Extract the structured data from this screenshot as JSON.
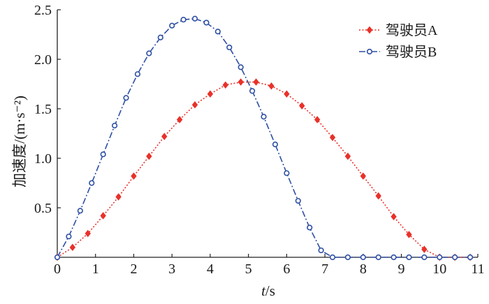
{
  "chart_data": {
    "type": "line",
    "ylabel": "加速度/(m·s⁻²)",
    "xlabel_var": "t",
    "xlabel_unit": "/s",
    "xlim": [
      0,
      11
    ],
    "ylim": [
      0,
      2.5
    ],
    "x_ticks": [
      "0",
      "1",
      "2",
      "3",
      "4",
      "5",
      "6",
      "7",
      "8",
      "9",
      "10",
      "11"
    ],
    "y_ticks": [
      "0.5",
      "1.0",
      "1.5",
      "2.0",
      "2.5"
    ],
    "grid": false,
    "legend_position": "top-right",
    "series": [
      {
        "name": "驾驶员A",
        "color": "#e8312a",
        "marker": "diamond",
        "line_style": "dotted",
        "x": [
          0,
          0.4,
          0.8,
          1.2,
          1.6,
          2.0,
          2.4,
          2.8,
          3.2,
          3.6,
          4.0,
          4.4,
          4.8,
          5.2,
          5.6,
          6.0,
          6.4,
          6.8,
          7.2,
          7.6,
          8.0,
          8.4,
          8.8,
          9.2,
          9.6,
          10.0,
          10.4,
          10.8
        ],
        "y": [
          0,
          0.1,
          0.24,
          0.42,
          0.61,
          0.82,
          1.02,
          1.22,
          1.39,
          1.54,
          1.65,
          1.74,
          1.77,
          1.77,
          1.73,
          1.65,
          1.53,
          1.39,
          1.21,
          1.02,
          0.82,
          0.62,
          0.41,
          0.23,
          0.08,
          0,
          0,
          0
        ]
      },
      {
        "name": "驾驶员B",
        "color": "#2e4fa3",
        "marker": "circle",
        "line_style": "dashdot",
        "x": [
          0,
          0.3,
          0.6,
          0.9,
          1.2,
          1.5,
          1.8,
          2.1,
          2.4,
          2.7,
          3.0,
          3.3,
          3.6,
          3.9,
          4.2,
          4.5,
          4.8,
          5.1,
          5.4,
          5.7,
          6.0,
          6.3,
          6.6,
          6.9,
          7.2,
          7.6,
          8.0,
          8.4,
          8.8,
          9.2,
          9.6,
          10.0,
          10.4,
          10.8
        ],
        "y": [
          0,
          0.21,
          0.47,
          0.75,
          1.04,
          1.33,
          1.61,
          1.85,
          2.06,
          2.22,
          2.34,
          2.4,
          2.41,
          2.37,
          2.28,
          2.12,
          1.92,
          1.68,
          1.42,
          1.14,
          0.85,
          0.57,
          0.3,
          0.07,
          0,
          0,
          0,
          0,
          0,
          0,
          0,
          0,
          0,
          0
        ]
      }
    ]
  }
}
